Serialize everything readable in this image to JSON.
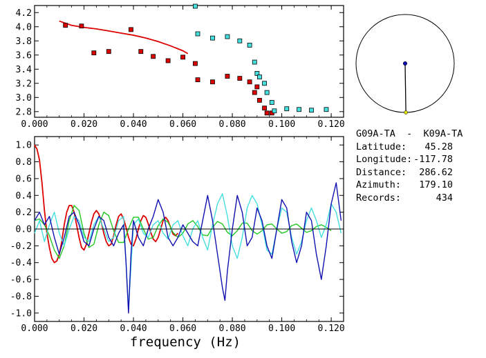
{
  "colors": {
    "red": "#dd0000",
    "cyan": "#44e0e0",
    "blue": "#1010b0",
    "green": "#22c822",
    "black": "#000000"
  },
  "chart_data": [
    {
      "id": "dispersion",
      "type": "scatter",
      "xlim": [
        0,
        0.125
      ],
      "ylim": [
        2.72,
        4.3
      ],
      "xticks": [
        "0.000",
        "0.020",
        "0.040",
        "0.060",
        "0.080",
        "0.100",
        "0.120"
      ],
      "yticks": [
        "2.8",
        "3.0",
        "3.2",
        "3.4",
        "3.6",
        "3.8",
        "4.0",
        "4.2"
      ],
      "series": [
        {
          "kind": "line",
          "color": "red",
          "x": [
            0.01,
            0.015,
            0.02,
            0.025,
            0.03,
            0.035,
            0.04,
            0.045,
            0.05,
            0.055,
            0.06,
            0.062
          ],
          "y": [
            4.08,
            4.02,
            3.99,
            3.97,
            3.94,
            3.91,
            3.88,
            3.84,
            3.79,
            3.73,
            3.66,
            3.62
          ]
        },
        {
          "kind": "points",
          "color": "red",
          "x": [
            0.0125,
            0.019,
            0.024,
            0.03,
            0.039,
            0.043,
            0.048,
            0.054,
            0.06,
            0.065,
            0.066,
            0.072,
            0.078,
            0.083,
            0.087,
            0.089,
            0.09,
            0.091,
            0.093,
            0.094,
            0.096
          ],
          "y": [
            4.02,
            4.01,
            3.63,
            3.65,
            3.96,
            3.65,
            3.58,
            3.52,
            3.57,
            3.48,
            3.25,
            3.22,
            3.3,
            3.27,
            3.22,
            3.07,
            3.15,
            2.96,
            2.85,
            2.78,
            2.78
          ]
        },
        {
          "kind": "points",
          "color": "cyan",
          "x": [
            0.065,
            0.066,
            0.072,
            0.078,
            0.083,
            0.087,
            0.089,
            0.09,
            0.091,
            0.093,
            0.094,
            0.096,
            0.097,
            0.102,
            0.107,
            0.112,
            0.118
          ],
          "y": [
            4.29,
            3.9,
            3.84,
            3.86,
            3.8,
            3.74,
            3.5,
            3.34,
            3.29,
            3.2,
            3.07,
            2.93,
            2.81,
            2.84,
            2.83,
            2.82,
            2.83
          ]
        }
      ]
    },
    {
      "id": "correlation",
      "type": "line",
      "xlim": [
        0,
        0.125
      ],
      "ylim": [
        -1.1,
        1.1
      ],
      "xlabel": "frequency (Hz)",
      "xticks": [
        "0.000",
        "0.020",
        "0.040",
        "0.060",
        "0.080",
        "0.100",
        "0.120"
      ],
      "yticks": [
        "1.0",
        "0.8",
        "0.6",
        "0.4",
        "0.2",
        "0.0",
        "-0.2",
        "-0.4",
        "-0.6",
        "-0.8",
        "-1.0"
      ],
      "series": [
        {
          "kind": "line",
          "color": "red",
          "x": [
            0.0,
            0.001,
            0.002,
            0.003,
            0.004,
            0.005,
            0.006,
            0.007,
            0.008,
            0.009,
            0.01,
            0.011,
            0.012,
            0.013,
            0.014,
            0.015,
            0.016,
            0.017,
            0.018,
            0.019,
            0.02,
            0.021,
            0.022,
            0.023,
            0.024,
            0.025,
            0.026,
            0.027,
            0.028,
            0.029,
            0.03,
            0.031,
            0.032,
            0.033,
            0.034,
            0.035,
            0.036,
            0.037,
            0.038,
            0.039,
            0.04,
            0.041,
            0.042,
            0.043,
            0.044,
            0.045,
            0.046,
            0.047,
            0.048,
            0.049,
            0.05,
            0.051,
            0.052,
            0.053,
            0.054,
            0.055,
            0.056,
            0.057,
            0.058
          ],
          "y": [
            1.0,
            0.95,
            0.82,
            0.55,
            0.22,
            -0.05,
            -0.22,
            -0.35,
            -0.4,
            -0.38,
            -0.3,
            -0.15,
            0.05,
            0.2,
            0.28,
            0.28,
            0.2,
            0.05,
            -0.1,
            -0.22,
            -0.25,
            -0.18,
            -0.05,
            0.08,
            0.18,
            0.22,
            0.18,
            0.08,
            -0.05,
            -0.15,
            -0.2,
            -0.18,
            -0.08,
            0.05,
            0.15,
            0.18,
            0.12,
            0.02,
            -0.1,
            -0.18,
            -0.2,
            -0.12,
            0.0,
            0.1,
            0.16,
            0.14,
            0.06,
            -0.04,
            -0.12,
            -0.15,
            -0.1,
            0.0,
            0.1,
            0.14,
            0.1,
            0.02,
            -0.06,
            -0.08,
            -0.05
          ]
        },
        {
          "kind": "line",
          "color": "green",
          "x": [
            0.0,
            0.002,
            0.004,
            0.006,
            0.008,
            0.01,
            0.012,
            0.014,
            0.016,
            0.018,
            0.02,
            0.022,
            0.024,
            0.026,
            0.028,
            0.03,
            0.032,
            0.034,
            0.036,
            0.038,
            0.04,
            0.042,
            0.044,
            0.046,
            0.048,
            0.05,
            0.052,
            0.054,
            0.056,
            0.058,
            0.06,
            0.062,
            0.064,
            0.066,
            0.068,
            0.07,
            0.072,
            0.074,
            0.076,
            0.078,
            0.08,
            0.082,
            0.084,
            0.086,
            0.088,
            0.09,
            0.092,
            0.094,
            0.096,
            0.098,
            0.1,
            0.102,
            0.104,
            0.106,
            0.108,
            0.11,
            0.112,
            0.114,
            0.116,
            0.118,
            0.12
          ],
          "y": [
            0.1,
            0.12,
            0.05,
            -0.08,
            -0.25,
            -0.35,
            -0.2,
            0.1,
            0.28,
            0.22,
            -0.05,
            -0.22,
            -0.18,
            0.05,
            0.2,
            0.16,
            -0.02,
            -0.16,
            -0.16,
            0.0,
            0.14,
            0.14,
            0.0,
            -0.12,
            -0.1,
            0.04,
            0.12,
            0.08,
            -0.04,
            -0.1,
            -0.05,
            0.06,
            0.1,
            0.03,
            -0.07,
            -0.08,
            0.02,
            0.09,
            0.06,
            -0.04,
            -0.08,
            -0.02,
            0.07,
            0.07,
            -0.02,
            -0.06,
            -0.02,
            0.05,
            0.06,
            0.0,
            -0.05,
            -0.03,
            0.04,
            0.06,
            0.01,
            -0.04,
            -0.02,
            0.03,
            0.05,
            0.02,
            -0.02
          ]
        },
        {
          "kind": "line",
          "color": "cyan",
          "x": [
            0.0,
            0.002,
            0.004,
            0.006,
            0.008,
            0.01,
            0.012,
            0.014,
            0.016,
            0.018,
            0.02,
            0.022,
            0.024,
            0.026,
            0.028,
            0.03,
            0.032,
            0.034,
            0.036,
            0.038,
            0.04,
            0.042,
            0.044,
            0.046,
            0.048,
            0.05,
            0.052,
            0.054,
            0.056,
            0.058,
            0.06,
            0.062,
            0.064,
            0.066,
            0.068,
            0.07,
            0.072,
            0.074,
            0.076,
            0.078,
            0.08,
            0.082,
            0.084,
            0.086,
            0.088,
            0.09,
            0.092,
            0.094,
            0.096,
            0.098,
            0.1,
            0.102,
            0.104,
            0.106,
            0.108,
            0.11,
            0.112,
            0.114,
            0.116,
            0.118,
            0.12,
            0.122,
            0.124
          ],
          "y": [
            -0.05,
            0.1,
            -0.15,
            0.05,
            0.2,
            -0.05,
            -0.2,
            0.0,
            0.15,
            0.1,
            -0.1,
            -0.15,
            0.05,
            0.15,
            0.0,
            -0.15,
            -0.1,
            0.1,
            0.15,
            -0.95,
            0.05,
            0.12,
            -0.05,
            -0.1,
            0.05,
            0.1,
            -0.05,
            -0.12,
            0.05,
            0.1,
            -0.08,
            -0.2,
            0.0,
            0.1,
            -0.1,
            -0.25,
            0.05,
            0.3,
            0.42,
            0.15,
            -0.2,
            -0.35,
            -0.1,
            0.25,
            0.4,
            0.3,
            0.05,
            -0.25,
            -0.3,
            0.0,
            0.25,
            0.2,
            -0.1,
            -0.3,
            -0.15,
            0.1,
            0.25,
            0.1,
            -0.1,
            0.05,
            0.3,
            0.2,
            -0.05
          ]
        },
        {
          "kind": "line",
          "color": "blue",
          "x": [
            0.0,
            0.002,
            0.004,
            0.006,
            0.008,
            0.01,
            0.012,
            0.014,
            0.016,
            0.018,
            0.02,
            0.022,
            0.024,
            0.026,
            0.028,
            0.03,
            0.032,
            0.034,
            0.036,
            0.037,
            0.038,
            0.039,
            0.04,
            0.042,
            0.044,
            0.046,
            0.048,
            0.05,
            0.052,
            0.054,
            0.056,
            0.058,
            0.06,
            0.062,
            0.064,
            0.066,
            0.068,
            0.07,
            0.072,
            0.074,
            0.076,
            0.077,
            0.078,
            0.08,
            0.082,
            0.084,
            0.086,
            0.088,
            0.09,
            0.092,
            0.094,
            0.096,
            0.098,
            0.1,
            0.102,
            0.104,
            0.106,
            0.108,
            0.11,
            0.112,
            0.114,
            0.116,
            0.118,
            0.12,
            0.122,
            0.124
          ],
          "y": [
            0.1,
            0.2,
            0.05,
            0.15,
            -0.1,
            -0.3,
            -0.1,
            0.15,
            0.2,
            0.05,
            -0.15,
            -0.2,
            0.0,
            0.15,
            0.1,
            -0.1,
            -0.2,
            -0.05,
            0.05,
            -0.4,
            -1.0,
            -0.3,
            0.1,
            -0.1,
            -0.2,
            0.0,
            0.15,
            0.35,
            0.2,
            -0.1,
            -0.2,
            -0.1,
            0.05,
            -0.05,
            -0.15,
            -0.2,
            0.1,
            0.4,
            0.1,
            -0.3,
            -0.7,
            -0.85,
            -0.5,
            0.0,
            0.4,
            0.2,
            -0.2,
            -0.1,
            0.25,
            0.1,
            -0.2,
            -0.35,
            0.0,
            0.35,
            0.25,
            -0.15,
            -0.4,
            -0.2,
            0.2,
            0.1,
            -0.3,
            -0.6,
            -0.2,
            0.3,
            0.55,
            0.1
          ]
        },
        {
          "kind": "hline",
          "color": "black",
          "y": 0
        }
      ]
    },
    {
      "id": "map-circle",
      "type": "diagram",
      "azimuth_deg": 179.1
    }
  ],
  "info": {
    "station_pair": "G09A-TA  -  K09A-TA",
    "rows": [
      {
        "label": "Latitude:",
        "value": "45.28"
      },
      {
        "label": "Longitude:",
        "value": "-117.78"
      },
      {
        "label": "Distance:",
        "value": "286.62"
      },
      {
        "label": "Azimuth:",
        "value": "179.10"
      },
      {
        "label": "Records:",
        "value": "434"
      }
    ]
  }
}
